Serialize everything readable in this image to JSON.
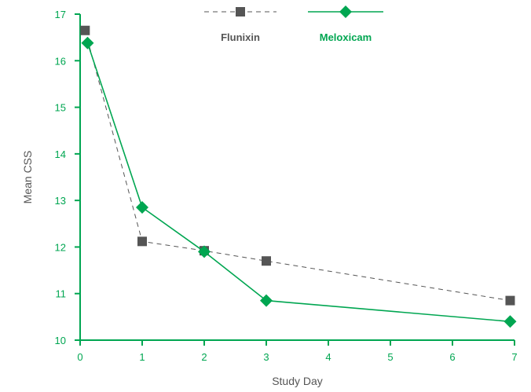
{
  "chart_data": {
    "type": "line",
    "title": "",
    "xlabel": "Study Day",
    "ylabel": "Mean CSS",
    "xlim": [
      0,
      7
    ],
    "ylim": [
      10,
      17
    ],
    "x_ticks": [
      "0",
      "1",
      "2",
      "3",
      "4",
      "5",
      "6",
      "7"
    ],
    "y_ticks": [
      "10",
      "11",
      "12",
      "13",
      "14",
      "15",
      "16",
      "17"
    ],
    "grid": false,
    "legend_position": "top-center",
    "axis_color": "#00A651",
    "series": [
      {
        "name": "Flunixin",
        "color": "#555555",
        "line_style": "dashed",
        "marker": "square",
        "x": [
          0.08,
          1,
          2,
          3,
          6.93
        ],
        "y": [
          16.65,
          12.12,
          11.92,
          11.7,
          10.85
        ]
      },
      {
        "name": "Meloxicam",
        "color": "#00A651",
        "line_style": "solid",
        "marker": "diamond",
        "x": [
          0.12,
          1,
          2,
          3,
          6.93
        ],
        "y": [
          16.38,
          12.85,
          11.9,
          10.85,
          10.4
        ]
      }
    ]
  }
}
